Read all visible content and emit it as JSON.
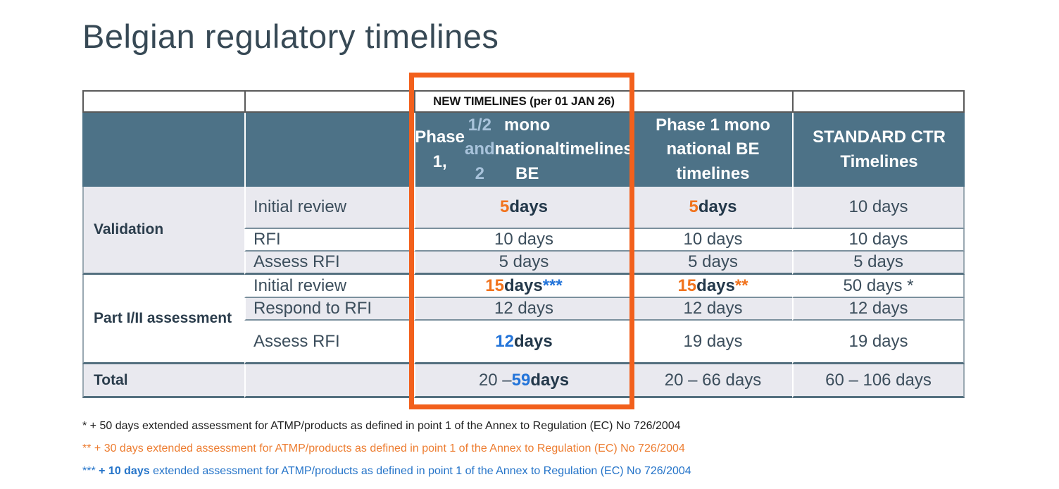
{
  "title": "Belgian regulatory timelines",
  "colors": {
    "header_bg": "#4d7287",
    "light_row_bg": "#e9e9ef",
    "accent_orange": "#f2601c",
    "accent_blue": "#2374d9",
    "header_light_blue": "#a8c3db",
    "dark_text": "#3c4e5c"
  },
  "table": {
    "new_timelines_label": "NEW TIMELINES (per 01 JAN 26)",
    "header": {
      "col3_segments": [
        {
          "text": "Phase 1,",
          "style": "white-bold"
        },
        {
          "text": "1/2 and 2",
          "style": "lightblue-bold"
        },
        {
          "style": "break"
        },
        {
          "text": "mono national BE",
          "style": "white-bold"
        },
        {
          "style": "break"
        },
        {
          "text": "timelines",
          "style": "white-bold"
        }
      ],
      "col4": "Phase 1 mono\nnational BE\ntimelines",
      "col5": "STANDARD CTR\nTimelines"
    },
    "groups": [
      {
        "label": "Validation",
        "rows": [
          {
            "label": "Initial review",
            "values": [
              [
                {
                  "text": "5",
                  "style": "orange-bold"
                },
                {
                  "text": " days",
                  "style": "dark-bold"
                }
              ],
              [
                {
                  "text": "5",
                  "style": "orange-bold"
                },
                {
                  "text": " days",
                  "style": "dark-bold"
                }
              ],
              [
                {
                  "text": "10 days",
                  "style": "plain"
                }
              ]
            ]
          },
          {
            "label": "RFI",
            "values": [
              [
                {
                  "text": "10 days",
                  "style": "plain"
                }
              ],
              [
                {
                  "text": "10 days",
                  "style": "plain"
                }
              ],
              [
                {
                  "text": "10 days",
                  "style": "plain"
                }
              ]
            ]
          },
          {
            "label": "Assess RFI",
            "values": [
              [
                {
                  "text": "5 days",
                  "style": "plain"
                }
              ],
              [
                {
                  "text": "5 days",
                  "style": "plain"
                }
              ],
              [
                {
                  "text": "5 days",
                  "style": "plain"
                }
              ]
            ]
          }
        ]
      },
      {
        "label": "Part I/II assessment",
        "rows": [
          {
            "label": "Initial review",
            "values": [
              [
                {
                  "text": "15",
                  "style": "orange-bold"
                },
                {
                  "text": " days ",
                  "style": "dark-bold"
                },
                {
                  "text": "***",
                  "style": "blue-bold"
                }
              ],
              [
                {
                  "text": "15",
                  "style": "orange-bold"
                },
                {
                  "text": " days ",
                  "style": "dark-bold"
                },
                {
                  "text": "**",
                  "style": "orange-bold"
                }
              ],
              [
                {
                  "text": "50 days *",
                  "style": "plain"
                }
              ]
            ]
          },
          {
            "label": "Respond to RFI",
            "values": [
              [
                {
                  "text": "12 days",
                  "style": "plain"
                }
              ],
              [
                {
                  "text": "12 days",
                  "style": "plain"
                }
              ],
              [
                {
                  "text": "12 days",
                  "style": "plain"
                }
              ]
            ]
          },
          {
            "label": "Assess RFI",
            "values": [
              [
                {
                  "text": "12",
                  "style": "blue-bold"
                },
                {
                  "text": " days",
                  "style": "dark-bold"
                }
              ],
              [
                {
                  "text": "19 days",
                  "style": "plain"
                }
              ],
              [
                {
                  "text": "19 days",
                  "style": "plain"
                }
              ]
            ]
          }
        ]
      }
    ],
    "total": {
      "label": "Total",
      "values": [
        [
          {
            "text": "20 – ",
            "style": "plain"
          },
          {
            "text": "59",
            "style": "blue-bold"
          },
          {
            "text": " days",
            "style": "dark-bold"
          }
        ],
        [
          {
            "text": "20 – 66 days",
            "style": "plain"
          }
        ],
        [
          {
            "text": "60 – 106 days",
            "style": "plain"
          }
        ]
      ]
    }
  },
  "footnotes": [
    {
      "segments": [
        {
          "text": "* + 50 days extended assessment for ATMP/products as defined in point 1 of the Annex to Regulation (EC) No 726/2004",
          "style": "fn-black"
        }
      ]
    },
    {
      "segments": [
        {
          "text": "** + 30 days extended assessment for ATMP/products as defined in point 1 of the Annex to Regulation (EC) No 726/2004",
          "style": "fn-orange"
        }
      ]
    },
    {
      "segments": [
        {
          "text": "*** ",
          "style": "fn-blue"
        },
        {
          "text": "+ 10 days",
          "style": "fn-blue-bold"
        },
        {
          "text": " extended assessment for ATMP/products as defined in point 1 of the Annex to Regulation (EC) No 726/2004",
          "style": "fn-blue"
        }
      ]
    }
  ]
}
